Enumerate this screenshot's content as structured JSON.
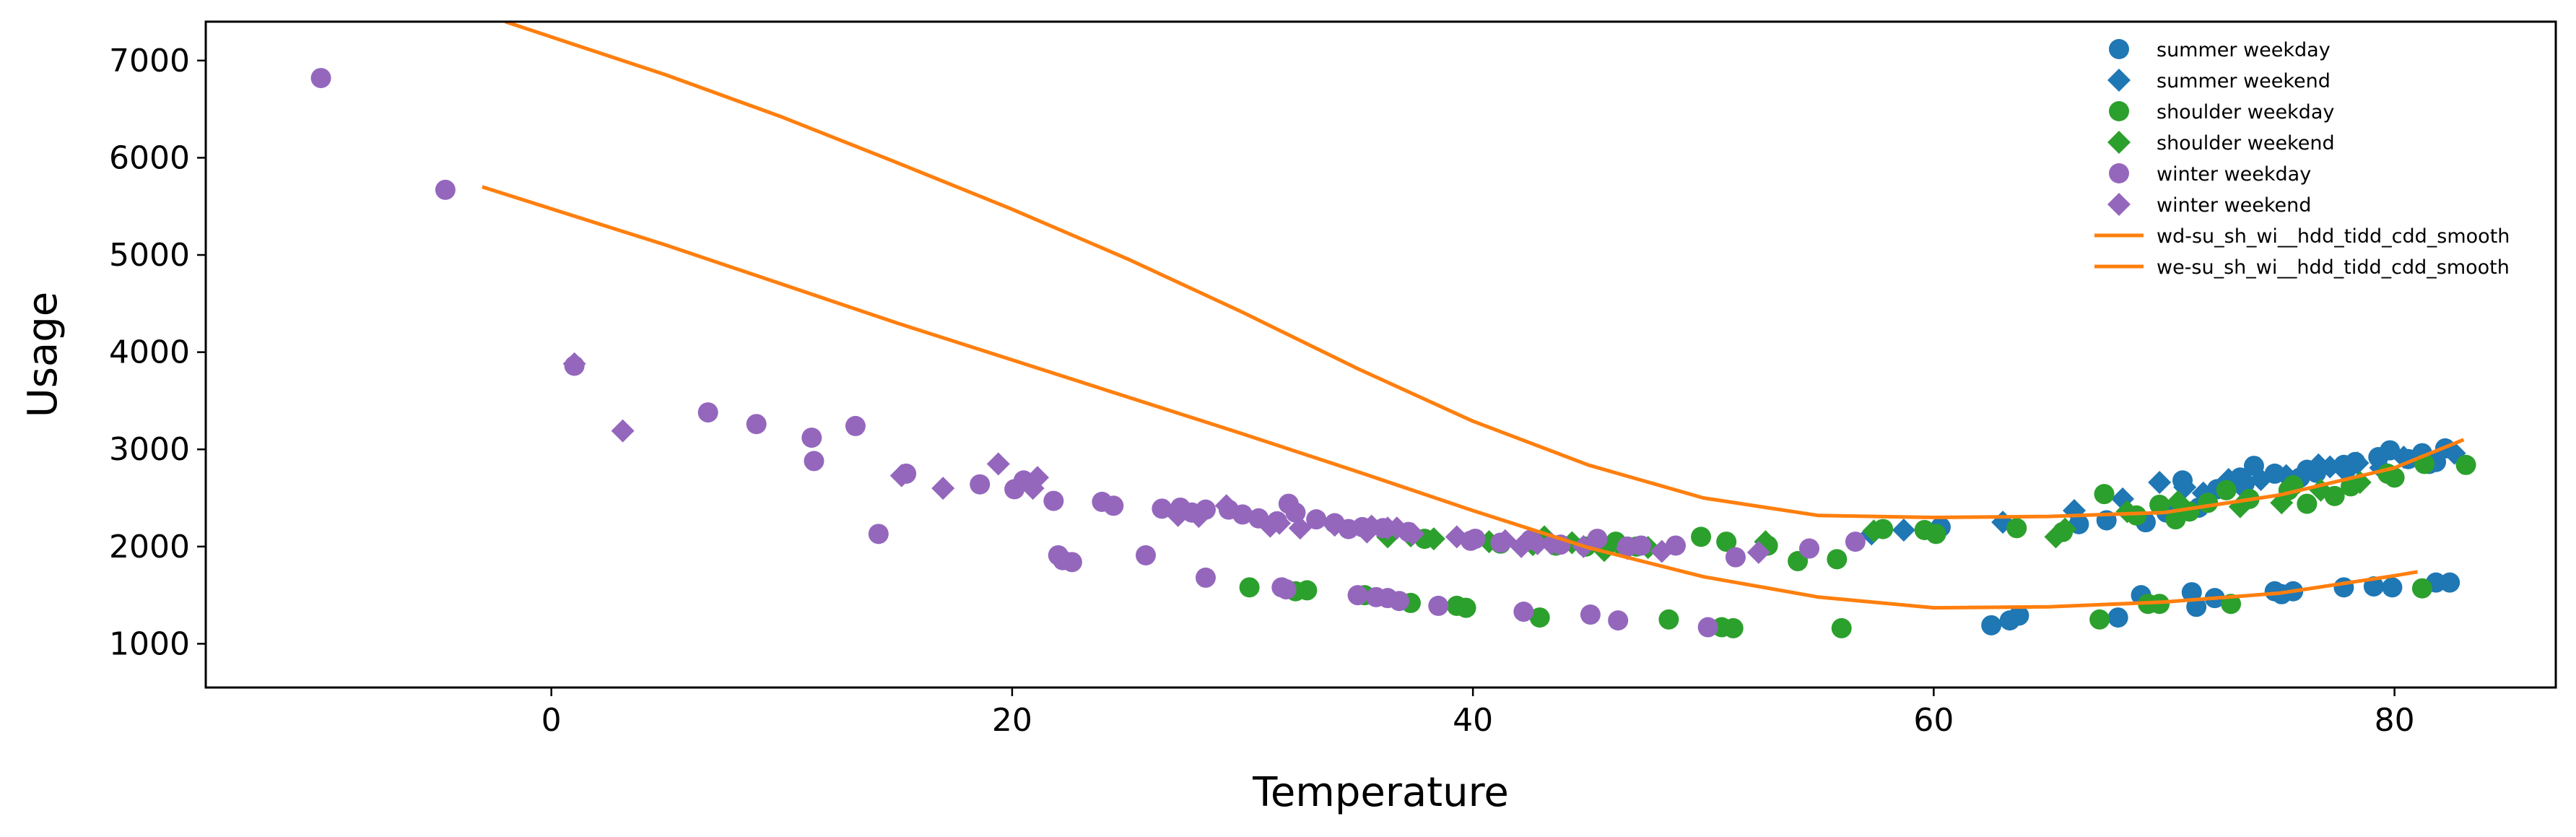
{
  "chart_data": {
    "type": "scatter",
    "title": "",
    "xlabel": "Temperature",
    "ylabel": "Usage",
    "xlim": [
      -15,
      87
    ],
    "ylim": [
      550,
      7400
    ],
    "xticks": [
      0,
      20,
      40,
      60,
      80
    ],
    "yticks": [
      1000,
      2000,
      3000,
      4000,
      5000,
      6000,
      7000
    ],
    "grid": false,
    "legend_position": "top-right",
    "colors": {
      "blue": "#1f77b4",
      "green": "#2ca02c",
      "purple": "#9467bd",
      "orange": "#ff7f0e",
      "axis": "#000000"
    },
    "series": [
      {
        "name": "summer weekday",
        "marker": "circle",
        "color": "#1f77b4",
        "points": [
          [
            62.5,
            1190
          ],
          [
            63.3,
            1240
          ],
          [
            63.7,
            1290
          ],
          [
            68,
            1270
          ],
          [
            69,
            1500
          ],
          [
            71.2,
            1530
          ],
          [
            71.4,
            1380
          ],
          [
            72.2,
            1470
          ],
          [
            74.8,
            1540
          ],
          [
            75.1,
            1510
          ],
          [
            75.6,
            1540
          ],
          [
            77.8,
            1580
          ],
          [
            79.1,
            1590
          ],
          [
            79.9,
            1580
          ],
          [
            81.8,
            1630
          ],
          [
            82.4,
            1630
          ],
          [
            60.3,
            2200
          ],
          [
            66.3,
            2230
          ],
          [
            67.5,
            2270
          ],
          [
            69.2,
            2250
          ],
          [
            70.1,
            2350
          ],
          [
            70.8,
            2680
          ],
          [
            71.5,
            2400
          ],
          [
            72.3,
            2590
          ],
          [
            73.3,
            2710
          ],
          [
            73.9,
            2830
          ],
          [
            74.8,
            2750
          ],
          [
            75.9,
            2710
          ],
          [
            76.6,
            2760
          ],
          [
            77.8,
            2840
          ],
          [
            78.3,
            2870
          ],
          [
            79.3,
            2920
          ],
          [
            79.8,
            2990
          ],
          [
            80.6,
            2900
          ],
          [
            81.2,
            2960
          ],
          [
            81.8,
            2870
          ],
          [
            82.2,
            3010
          ],
          [
            81.5,
            2850
          ],
          [
            76.2,
            2790
          ],
          [
            73.5,
            2650
          ]
        ]
      },
      {
        "name": "summer weekend",
        "marker": "diamond",
        "color": "#1f77b4",
        "points": [
          [
            57.3,
            2130
          ],
          [
            58.7,
            2170
          ],
          [
            63,
            2250
          ],
          [
            66.1,
            2370
          ],
          [
            68.2,
            2490
          ],
          [
            69.8,
            2660
          ],
          [
            71.7,
            2550
          ],
          [
            73.4,
            2610
          ],
          [
            74.2,
            2690
          ],
          [
            75.3,
            2730
          ],
          [
            76.7,
            2840
          ],
          [
            77.9,
            2770
          ],
          [
            78.4,
            2860
          ],
          [
            79.4,
            2810
          ],
          [
            80.4,
            2920
          ],
          [
            81.3,
            2890
          ],
          [
            82.6,
            2960
          ],
          [
            70.9,
            2610
          ],
          [
            72.8,
            2690
          ],
          [
            77.2,
            2820
          ]
        ]
      },
      {
        "name": "shoulder weekday",
        "marker": "circle",
        "color": "#2ca02c",
        "points": [
          [
            30.3,
            1580
          ],
          [
            32.3,
            1540
          ],
          [
            32.8,
            1550
          ],
          [
            35.3,
            1500
          ],
          [
            37.3,
            1420
          ],
          [
            39.3,
            1390
          ],
          [
            39.7,
            1370
          ],
          [
            42.9,
            1270
          ],
          [
            48.5,
            1250
          ],
          [
            50.8,
            1170
          ],
          [
            51.3,
            1160
          ],
          [
            56,
            1160
          ],
          [
            67.2,
            1250
          ],
          [
            69.3,
            1410
          ],
          [
            69.8,
            1410
          ],
          [
            72.9,
            1410
          ],
          [
            81.2,
            1570
          ],
          [
            37.9,
            2080
          ],
          [
            41.2,
            2030
          ],
          [
            43.6,
            2010
          ],
          [
            44.9,
            2000
          ],
          [
            46.2,
            2050
          ],
          [
            47.1,
            2000
          ],
          [
            49.9,
            2100
          ],
          [
            51,
            2050
          ],
          [
            52.8,
            2010
          ],
          [
            54.1,
            1850
          ],
          [
            55.8,
            1870
          ],
          [
            57.8,
            2180
          ],
          [
            59.6,
            2170
          ],
          [
            60.1,
            2130
          ],
          [
            63.6,
            2190
          ],
          [
            65.6,
            2150
          ],
          [
            67.4,
            2540
          ],
          [
            68.8,
            2320
          ],
          [
            69.8,
            2430
          ],
          [
            70.5,
            2280
          ],
          [
            71.1,
            2360
          ],
          [
            72.7,
            2580
          ],
          [
            73.7,
            2490
          ],
          [
            75.6,
            2630
          ],
          [
            76.2,
            2440
          ],
          [
            77.4,
            2520
          ],
          [
            78.1,
            2620
          ],
          [
            80,
            2710
          ],
          [
            81.3,
            2850
          ],
          [
            83.1,
            2840
          ],
          [
            79.7,
            2750
          ],
          [
            75.4,
            2580
          ],
          [
            71.9,
            2450
          ]
        ]
      },
      {
        "name": "shoulder weekend",
        "marker": "diamond",
        "color": "#2ca02c",
        "points": [
          [
            36.3,
            2100
          ],
          [
            37.3,
            2110
          ],
          [
            38.3,
            2080
          ],
          [
            40.7,
            2050
          ],
          [
            42.6,
            2020
          ],
          [
            43.1,
            2100
          ],
          [
            44.3,
            2040
          ],
          [
            45.7,
            1960
          ],
          [
            46.3,
            2030
          ],
          [
            47.6,
            1990
          ],
          [
            52.7,
            2050
          ],
          [
            57.4,
            2160
          ],
          [
            65.3,
            2100
          ],
          [
            65.7,
            2180
          ],
          [
            68.4,
            2360
          ],
          [
            70.6,
            2460
          ],
          [
            73.3,
            2410
          ],
          [
            75.1,
            2450
          ],
          [
            76.8,
            2580
          ],
          [
            78.5,
            2660
          ]
        ]
      },
      {
        "name": "winter weekday",
        "marker": "circle",
        "color": "#9467bd",
        "points": [
          [
            -10,
            6820
          ],
          [
            -4.6,
            5670
          ],
          [
            1,
            3860
          ],
          [
            6.8,
            3380
          ],
          [
            8.9,
            3260
          ],
          [
            11.3,
            3120
          ],
          [
            11.4,
            2880
          ],
          [
            13.2,
            3240
          ],
          [
            14.2,
            2130
          ],
          [
            15.4,
            2750
          ],
          [
            18.6,
            2640
          ],
          [
            20.1,
            2590
          ],
          [
            20.5,
            2680
          ],
          [
            21.8,
            2470
          ],
          [
            22,
            1910
          ],
          [
            22.2,
            1860
          ],
          [
            22.6,
            1840
          ],
          [
            23.9,
            2460
          ],
          [
            24.4,
            2420
          ],
          [
            25.8,
            1910
          ],
          [
            26.5,
            2390
          ],
          [
            27.3,
            2400
          ],
          [
            28.4,
            2380
          ],
          [
            28.4,
            1680
          ],
          [
            29.4,
            2380
          ],
          [
            30,
            2330
          ],
          [
            30.7,
            2290
          ],
          [
            31.5,
            2260
          ],
          [
            31.7,
            1580
          ],
          [
            31.9,
            1560
          ],
          [
            32,
            2440
          ],
          [
            32.3,
            2350
          ],
          [
            33.2,
            2280
          ],
          [
            34,
            2240
          ],
          [
            35,
            1500
          ],
          [
            35.2,
            2200
          ],
          [
            35.8,
            1480
          ],
          [
            36.1,
            2190
          ],
          [
            36.3,
            1470
          ],
          [
            36.8,
            1440
          ],
          [
            37.2,
            2150
          ],
          [
            38.5,
            1390
          ],
          [
            40.1,
            2080
          ],
          [
            41.2,
            2040
          ],
          [
            42.2,
            1330
          ],
          [
            42.5,
            2070
          ],
          [
            45.1,
            1300
          ],
          [
            45.4,
            2080
          ],
          [
            46.3,
            1240
          ],
          [
            46.7,
            2000
          ],
          [
            47.3,
            2010
          ],
          [
            48.8,
            2010
          ],
          [
            50.2,
            1170
          ],
          [
            51.4,
            1890
          ],
          [
            54.6,
            1980
          ],
          [
            56.6,
            2050
          ],
          [
            43.8,
            2020
          ],
          [
            27.8,
            2350
          ],
          [
            34.6,
            2180
          ],
          [
            39.9,
            2060
          ]
        ]
      },
      {
        "name": "winter weekend",
        "marker": "diamond",
        "color": "#9467bd",
        "points": [
          [
            1,
            3880
          ],
          [
            3.1,
            3190
          ],
          [
            15.2,
            2730
          ],
          [
            17,
            2600
          ],
          [
            19.4,
            2850
          ],
          [
            20.9,
            2600
          ],
          [
            21.1,
            2710
          ],
          [
            27.2,
            2320
          ],
          [
            28.1,
            2310
          ],
          [
            29.3,
            2420
          ],
          [
            31.6,
            2240
          ],
          [
            32.5,
            2190
          ],
          [
            34,
            2220
          ],
          [
            35.6,
            2210
          ],
          [
            36.3,
            2190
          ],
          [
            37.4,
            2130
          ],
          [
            39.3,
            2100
          ],
          [
            41.4,
            2060
          ],
          [
            42.8,
            2030
          ],
          [
            43.4,
            2030
          ],
          [
            44.8,
            2000
          ],
          [
            46.7,
            1980
          ],
          [
            48.2,
            1950
          ],
          [
            52.4,
            1940
          ],
          [
            31.2,
            2210
          ],
          [
            35.4,
            2150
          ],
          [
            36.7,
            2190
          ],
          [
            42.1,
            2000
          ]
        ]
      }
    ],
    "lines": [
      {
        "name": "wd-su_sh_wi__hdd_tidd_cdd_smooth",
        "color": "#ff7f0e",
        "x": [
          -2,
          5,
          10,
          15,
          20,
          25,
          30,
          35,
          40,
          45,
          50,
          55,
          60,
          65,
          70,
          75,
          80,
          83
        ],
        "y": [
          7400,
          6850,
          6420,
          5950,
          5470,
          4960,
          4410,
          3830,
          3290,
          2840,
          2500,
          2320,
          2300,
          2310,
          2350,
          2530,
          2810,
          3100
        ]
      },
      {
        "name": "we-su_sh_wi__hdd_tidd_cdd_smooth",
        "color": "#ff7f0e",
        "x": [
          -3,
          5,
          10,
          15,
          20,
          25,
          30,
          35,
          40,
          45,
          50,
          55,
          60,
          65,
          70,
          75,
          80,
          81
        ],
        "y": [
          5700,
          5100,
          4700,
          4300,
          3920,
          3540,
          3160,
          2770,
          2370,
          1990,
          1690,
          1480,
          1370,
          1380,
          1430,
          1520,
          1700,
          1740
        ]
      }
    ]
  }
}
